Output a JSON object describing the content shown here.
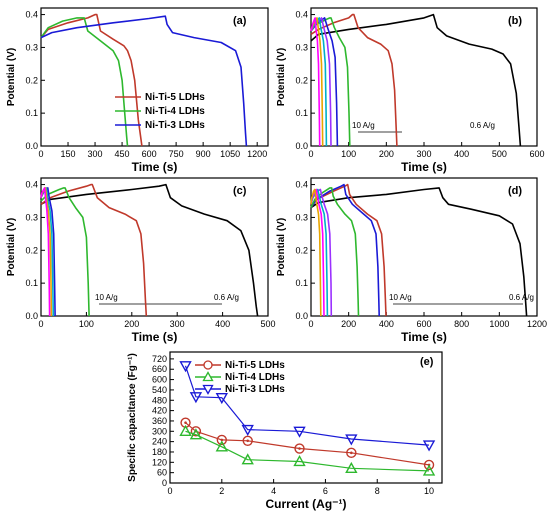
{
  "chart_data": [
    {
      "panel": "(a)",
      "type": "line",
      "xlabel": "Time (s)",
      "ylabel": "Potential (V)",
      "xlim": [
        0,
        1260
      ],
      "ylim": [
        0,
        0.42
      ],
      "xticks": [
        0,
        150,
        300,
        450,
        600,
        750,
        900,
        1050,
        1200
      ],
      "yticks": [
        0.0,
        0.1,
        0.2,
        0.3,
        0.4
      ],
      "legend": "center-right",
      "series": [
        {
          "name": "Ni-Ti-5 LDHs",
          "color": "#c0392b",
          "x": [
            0,
            40,
            150,
            260,
            300,
            310,
            330,
            400,
            460,
            480,
            500,
            520,
            540,
            560
          ],
          "y": [
            0.33,
            0.355,
            0.375,
            0.39,
            0.4,
            0.4,
            0.35,
            0.325,
            0.305,
            0.29,
            0.26,
            0.2,
            0.08,
            0
          ]
        },
        {
          "name": "Ni-Ti-4 LDHs",
          "color": "#2eb82e",
          "x": [
            0,
            40,
            120,
            200,
            230,
            240,
            260,
            330,
            400,
            430,
            450,
            462,
            475,
            480
          ],
          "y": [
            0.33,
            0.36,
            0.38,
            0.39,
            0.39,
            0.39,
            0.35,
            0.32,
            0.29,
            0.26,
            0.2,
            0.12,
            0.03,
            0
          ]
        },
        {
          "name": "Ni-Ti-3 LDHs",
          "color": "#1a1ad6",
          "x": [
            0,
            60,
            200,
            400,
            600,
            690,
            700,
            730,
            850,
            1000,
            1080,
            1110,
            1125,
            1135,
            1140
          ],
          "y": [
            0.33,
            0.345,
            0.36,
            0.375,
            0.388,
            0.395,
            0.37,
            0.345,
            0.33,
            0.315,
            0.29,
            0.24,
            0.13,
            0.04,
            0
          ]
        }
      ]
    },
    {
      "panel": "(b)",
      "type": "line",
      "xlabel": "Time (s)",
      "ylabel": "Potential (V)",
      "xlim": [
        0,
        600
      ],
      "ylim": [
        0,
        0.42
      ],
      "xticks": [
        0,
        100,
        200,
        300,
        400,
        500,
        600
      ],
      "yticks": [
        0.0,
        0.1,
        0.2,
        0.3,
        0.4
      ],
      "annotation_left": "10 A/g",
      "annotation_right": "0.6 A/g",
      "series": [
        {
          "color": "#000000",
          "x": [
            0,
            20,
            100,
            200,
            300,
            325,
            335,
            360,
            420,
            480,
            510,
            530,
            545,
            552,
            556
          ],
          "y": [
            0.32,
            0.34,
            0.355,
            0.37,
            0.39,
            0.4,
            0.36,
            0.335,
            0.31,
            0.295,
            0.28,
            0.25,
            0.16,
            0.06,
            0
          ]
        },
        {
          "color": "#c0392b",
          "x": [
            0,
            20,
            60,
            100,
            110,
            114,
            125,
            150,
            185,
            205,
            215,
            222,
            226,
            228
          ],
          "y": [
            0.34,
            0.355,
            0.375,
            0.39,
            0.4,
            0.4,
            0.36,
            0.33,
            0.31,
            0.29,
            0.25,
            0.17,
            0.06,
            0
          ]
        },
        {
          "color": "#2eb82e",
          "x": [
            0,
            15,
            40,
            50,
            53,
            62,
            75,
            90,
            97,
            101,
            103
          ],
          "y": [
            0.35,
            0.37,
            0.385,
            0.39,
            0.39,
            0.36,
            0.33,
            0.3,
            0.24,
            0.1,
            0
          ]
        },
        {
          "color": "#1a1ad6",
          "x": [
            0,
            12,
            30,
            36,
            44,
            56,
            64,
            68,
            70
          ],
          "y": [
            0.35,
            0.37,
            0.385,
            0.39,
            0.36,
            0.32,
            0.27,
            0.13,
            0
          ]
        },
        {
          "color": "#9b30ff",
          "x": [
            0,
            10,
            24,
            28,
            34,
            43,
            49,
            52,
            53
          ],
          "y": [
            0.35,
            0.37,
            0.385,
            0.39,
            0.36,
            0.32,
            0.25,
            0.1,
            0
          ]
        },
        {
          "color": "#00b0c8",
          "x": [
            0,
            8,
            18,
            22,
            26,
            33,
            38,
            40,
            41
          ],
          "y": [
            0.35,
            0.37,
            0.385,
            0.39,
            0.36,
            0.32,
            0.25,
            0.1,
            0
          ]
        },
        {
          "color": "#e8a500",
          "x": [
            0,
            6,
            13,
            16,
            19,
            24,
            28,
            30,
            31
          ],
          "y": [
            0.35,
            0.37,
            0.385,
            0.39,
            0.36,
            0.32,
            0.25,
            0.1,
            0
          ]
        },
        {
          "color": "#ff00ff",
          "x": [
            0,
            4,
            9,
            11,
            13,
            17,
            20,
            22,
            23
          ],
          "y": [
            0.35,
            0.37,
            0.385,
            0.39,
            0.36,
            0.32,
            0.25,
            0.1,
            0
          ]
        }
      ]
    },
    {
      "panel": "(c)",
      "type": "line",
      "xlabel": "Time (s)",
      "ylabel": "Potential (V)",
      "xlim": [
        0,
        500
      ],
      "ylim": [
        0,
        0.42
      ],
      "xticks": [
        0,
        100,
        200,
        300,
        400,
        500
      ],
      "yticks": [
        0.0,
        0.1,
        0.2,
        0.3,
        0.4
      ],
      "annotation_left": "10 A/g",
      "annotation_right": "0.6 A/g",
      "series": [
        {
          "color": "#000000",
          "x": [
            0,
            20,
            100,
            200,
            260,
            275,
            285,
            310,
            360,
            410,
            440,
            458,
            468,
            474,
            477
          ],
          "y": [
            0.34,
            0.355,
            0.37,
            0.385,
            0.395,
            0.4,
            0.36,
            0.335,
            0.31,
            0.29,
            0.26,
            0.2,
            0.1,
            0.03,
            0
          ]
        },
        {
          "color": "#c0392b",
          "x": [
            0,
            20,
            60,
            100,
            110,
            113,
            124,
            150,
            185,
            210,
            220,
            226,
            230,
            232
          ],
          "y": [
            0.34,
            0.36,
            0.38,
            0.395,
            0.4,
            0.4,
            0.36,
            0.33,
            0.31,
            0.29,
            0.25,
            0.16,
            0.05,
            0
          ]
        },
        {
          "color": "#2eb82e",
          "x": [
            0,
            15,
            40,
            50,
            53,
            62,
            76,
            92,
            100,
            104,
            106
          ],
          "y": [
            0.35,
            0.37,
            0.385,
            0.39,
            0.39,
            0.36,
            0.33,
            0.3,
            0.24,
            0.1,
            0
          ]
        },
        {
          "color": "#1a1ad6",
          "x": [
            0,
            5,
            12,
            15,
            18,
            24,
            28,
            30,
            31
          ],
          "y": [
            0.36,
            0.375,
            0.385,
            0.39,
            0.36,
            0.32,
            0.25,
            0.1,
            0
          ]
        },
        {
          "color": "#00b0c8",
          "x": [
            0,
            4,
            10,
            12,
            14,
            20,
            24,
            26,
            27
          ],
          "y": [
            0.36,
            0.375,
            0.385,
            0.39,
            0.36,
            0.32,
            0.25,
            0.1,
            0
          ]
        },
        {
          "color": "#e8a500",
          "x": [
            0,
            3,
            8,
            10,
            12,
            16,
            20,
            22,
            23
          ],
          "y": [
            0.36,
            0.375,
            0.385,
            0.39,
            0.36,
            0.32,
            0.25,
            0.1,
            0
          ]
        },
        {
          "color": "#ff00ff",
          "x": [
            0,
            2,
            6,
            8,
            10,
            13,
            16,
            18,
            19
          ],
          "y": [
            0.36,
            0.375,
            0.385,
            0.39,
            0.36,
            0.32,
            0.25,
            0.1,
            0
          ]
        }
      ]
    },
    {
      "panel": "(d)",
      "type": "line",
      "xlabel": "Time (s)",
      "ylabel": "Potential (V)",
      "xlim": [
        0,
        1200
      ],
      "ylim": [
        0,
        0.42
      ],
      "xticks": [
        0,
        200,
        400,
        600,
        800,
        1000,
        1200
      ],
      "yticks": [
        0.0,
        0.1,
        0.2,
        0.3,
        0.4
      ],
      "annotation_left": "10 A/g",
      "annotation_right": "0.6 A/g",
      "series": [
        {
          "color": "#000000",
          "x": [
            0,
            40,
            200,
            400,
            600,
            680,
            700,
            730,
            850,
            1000,
            1070,
            1110,
            1130,
            1140,
            1145
          ],
          "y": [
            0.33,
            0.345,
            0.36,
            0.37,
            0.385,
            0.39,
            0.36,
            0.34,
            0.325,
            0.305,
            0.28,
            0.22,
            0.12,
            0.04,
            0
          ]
        },
        {
          "color": "#c0392b",
          "x": [
            0,
            30,
            120,
            180,
            195,
            205,
            240,
            300,
            350,
            375,
            388,
            395,
            398
          ],
          "y": [
            0.33,
            0.355,
            0.38,
            0.395,
            0.4,
            0.37,
            0.34,
            0.31,
            0.29,
            0.25,
            0.15,
            0.05,
            0
          ]
        },
        {
          "color": "#1a1ad6",
          "x": [
            0,
            30,
            100,
            160,
            175,
            185,
            220,
            280,
            320,
            345,
            355,
            360,
            362
          ],
          "y": [
            0.33,
            0.355,
            0.38,
            0.395,
            0.4,
            0.37,
            0.34,
            0.31,
            0.29,
            0.25,
            0.15,
            0.05,
            0
          ]
        },
        {
          "color": "#2eb82e",
          "x": [
            0,
            20,
            60,
            100,
            110,
            118,
            140,
            180,
            215,
            235,
            245,
            250,
            252
          ],
          "y": [
            0.33,
            0.355,
            0.375,
            0.39,
            0.39,
            0.365,
            0.34,
            0.31,
            0.29,
            0.25,
            0.15,
            0.05,
            0
          ]
        },
        {
          "color": "#9b30ff",
          "x": [
            0,
            10,
            35,
            50,
            56,
            70,
            88,
            100,
            106,
            108
          ],
          "y": [
            0.34,
            0.36,
            0.38,
            0.385,
            0.37,
            0.34,
            0.31,
            0.25,
            0.1,
            0
          ]
        },
        {
          "color": "#00b0c8",
          "x": [
            0,
            8,
            25,
            36,
            42,
            54,
            70,
            80,
            85,
            87
          ],
          "y": [
            0.34,
            0.36,
            0.38,
            0.385,
            0.37,
            0.34,
            0.31,
            0.25,
            0.1,
            0
          ]
        },
        {
          "color": "#ff00ff",
          "x": [
            0,
            6,
            20,
            28,
            33,
            42,
            54,
            62,
            67,
            69
          ],
          "y": [
            0.34,
            0.36,
            0.38,
            0.385,
            0.37,
            0.34,
            0.31,
            0.25,
            0.1,
            0
          ]
        },
        {
          "color": "#e8a500",
          "x": [
            0,
            4,
            14,
            20,
            24,
            31,
            40,
            46,
            50,
            52
          ],
          "y": [
            0.34,
            0.36,
            0.38,
            0.385,
            0.37,
            0.34,
            0.31,
            0.25,
            0.1,
            0
          ]
        }
      ]
    },
    {
      "panel": "(e)",
      "type": "line",
      "xlabel": "Current (Ag⁻¹)",
      "ylabel": "Specific capacitance (Fg⁻¹)",
      "xlim": [
        0,
        10.5
      ],
      "ylim": [
        0,
        760
      ],
      "xticks": [
        0,
        2,
        4,
        6,
        8,
        10
      ],
      "yticks": [
        0,
        60,
        120,
        180,
        240,
        300,
        360,
        420,
        480,
        540,
        600,
        660,
        720
      ],
      "legend": "top-center",
      "series": [
        {
          "name": "Ni-Ti-5 LDHs",
          "color": "#c0392b",
          "marker": "circle",
          "x": [
            0.6,
            1,
            2,
            3,
            5,
            7,
            10
          ],
          "y": [
            350,
            300,
            250,
            245,
            200,
            175,
            105
          ]
        },
        {
          "name": "Ni-Ti-4 LDHs",
          "color": "#2eb82e",
          "marker": "triangle-up",
          "x": [
            0.6,
            1,
            2,
            3,
            5,
            7,
            10
          ],
          "y": [
            300,
            280,
            210,
            135,
            125,
            85,
            70
          ]
        },
        {
          "name": "Ni-Ti-3 LDHs",
          "color": "#1a1ad6",
          "marker": "triangle-down",
          "x": [
            0.6,
            1,
            2,
            3,
            5,
            7,
            10
          ],
          "y": [
            680,
            500,
            495,
            310,
            300,
            255,
            220
          ]
        }
      ]
    }
  ]
}
